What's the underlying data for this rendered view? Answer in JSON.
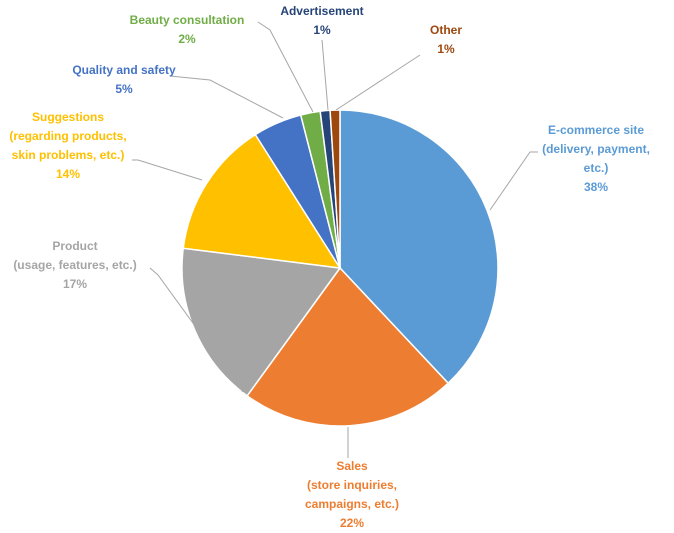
{
  "chart_data": {
    "type": "pie",
    "categories": [
      [
        "E-commerce site",
        "(delivery, payment,",
        "etc.)"
      ],
      [
        "Sales",
        "(store inquiries,",
        "campaigns, etc.)"
      ],
      [
        "Product",
        "(usage, features, etc.)"
      ],
      [
        "Suggestions",
        "(regarding products,",
        "skin problems, etc.)"
      ],
      [
        "Quality and safety"
      ],
      [
        "Beauty consultation"
      ],
      [
        "Advertisement"
      ],
      [
        "Other"
      ]
    ],
    "values": [
      38,
      22,
      17,
      14,
      5,
      2,
      1,
      1
    ],
    "value_labels": [
      "38%",
      "22%",
      "17%",
      "14%",
      "5%",
      "2%",
      "1%",
      "1%"
    ],
    "colors": [
      "#5b9bd5",
      "#ed7d31",
      "#a5a5a5",
      "#ffc000",
      "#4472c4",
      "#70ad47",
      "#264478",
      "#9e480e"
    ]
  }
}
